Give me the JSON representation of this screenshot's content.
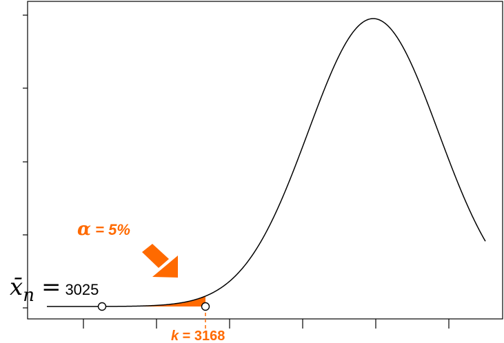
{
  "chart_data": {
    "type": "line",
    "title": "",
    "xlabel": "",
    "ylabel": "",
    "distribution": "normal",
    "curve_mean": 3400,
    "curve_sd": 90,
    "tick_labels_shown": false,
    "shaded_tail": "left",
    "colors": {
      "shaded_area": "#ff6a00",
      "annotation": "#ff6a00",
      "curve": "#000000"
    },
    "annotations": {
      "alpha_symbol": "α",
      "alpha_text": " = 5%",
      "k_label_var": "k",
      "k_label_rest": " = 3168",
      "xbar_symbol": "x̄",
      "xbar_subscript": "n",
      "xbar_equals": "=",
      "xbar_value": "3025"
    },
    "points": [
      {
        "name": "sample-mean",
        "x": 3025
      },
      {
        "name": "critical-value",
        "x": 3168
      }
    ]
  }
}
